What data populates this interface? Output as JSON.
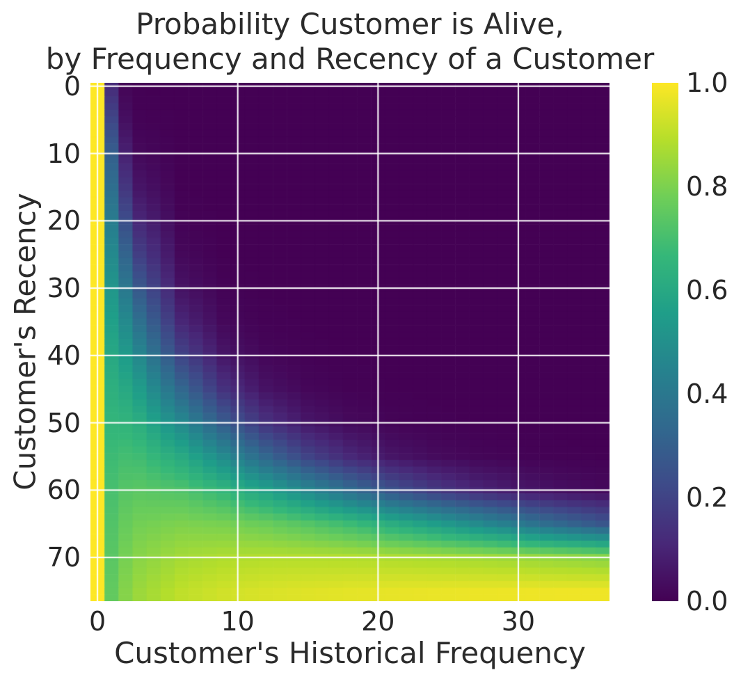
{
  "title": {
    "line1": "Probability Customer is Alive,",
    "line2": "by Frequency and Recency of a Customer"
  },
  "chart_data": {
    "type": "heatmap",
    "title": "Probability Customer is Alive, by Frequency and Recency of a Customer",
    "xlabel": "Customer's Historical Frequency",
    "ylabel": "Customer's Recency",
    "x_ticks": [
      0,
      10,
      20,
      30
    ],
    "y_ticks": [
      0,
      10,
      20,
      30,
      40,
      50,
      60,
      70
    ],
    "x_range": [
      -0.5,
      36.5
    ],
    "y_range": [
      -0.5,
      76.5
    ],
    "y_axis_inverted_top_is_zero": true,
    "grid": true,
    "grid_color": "#ffffff",
    "colormap": "viridis",
    "colormap_stops": [
      "#440154",
      "#482878",
      "#3e4a89",
      "#31688e",
      "#26828e",
      "#1f9e89",
      "#35b779",
      "#6ece58",
      "#b5de2b",
      "#fde725"
    ],
    "vmin": 0.0,
    "vmax": 1.0,
    "frequency_values": [
      0,
      1,
      2,
      3,
      6,
      9,
      12,
      15,
      18,
      21,
      24,
      27,
      30,
      33,
      36
    ],
    "recency_values": [
      0,
      5,
      10,
      15,
      20,
      25,
      30,
      35,
      40,
      45,
      50,
      55,
      60,
      65,
      70,
      75
    ],
    "values": [
      [
        1,
        0.12,
        0.01,
        0.001,
        0,
        0,
        0,
        0,
        0,
        0,
        0,
        0,
        0,
        0,
        0
      ],
      [
        1,
        0.21,
        0.04,
        0.006,
        0,
        0,
        0,
        0,
        0,
        0,
        0,
        0,
        0,
        0,
        0
      ],
      [
        1,
        0.3,
        0.09,
        0.022,
        0,
        0,
        0,
        0,
        0,
        0,
        0,
        0,
        0,
        0,
        0
      ],
      [
        1,
        0.36,
        0.156,
        0.055,
        0.001,
        0,
        0,
        0,
        0,
        0,
        0,
        0,
        0,
        0,
        0
      ],
      [
        1,
        0.42,
        0.236,
        0.109,
        0.006,
        0,
        0,
        0,
        0,
        0,
        0,
        0,
        0,
        0,
        0
      ],
      [
        1,
        0.473,
        0.32,
        0.183,
        0.019,
        0.001,
        0,
        0,
        0,
        0,
        0,
        0,
        0,
        0,
        0
      ],
      [
        1,
        0.522,
        0.4,
        0.272,
        0.048,
        0.006,
        0.001,
        0,
        0,
        0,
        0,
        0,
        0,
        0,
        0
      ],
      [
        1,
        0.563,
        0.475,
        0.367,
        0.106,
        0.02,
        0.003,
        0.001,
        0,
        0,
        0,
        0,
        0,
        0,
        0
      ],
      [
        1,
        0.6,
        0.542,
        0.461,
        0.2,
        0.058,
        0.014,
        0.003,
        0.001,
        0,
        0,
        0,
        0,
        0,
        0
      ],
      [
        1,
        0.631,
        0.6,
        0.547,
        0.328,
        0.142,
        0.049,
        0.015,
        0.004,
        0.001,
        0,
        0,
        0,
        0,
        0
      ],
      [
        1,
        0.658,
        0.65,
        0.622,
        0.471,
        0.287,
        0.143,
        0.062,
        0.024,
        0.009,
        0.003,
        0.001,
        0,
        0,
        0
      ],
      [
        1,
        0.682,
        0.694,
        0.687,
        0.606,
        0.475,
        0.328,
        0.2,
        0.11,
        0.057,
        0.028,
        0.013,
        0.006,
        0.003,
        0.001
      ],
      [
        1,
        0.704,
        0.731,
        0.74,
        0.718,
        0.656,
        0.567,
        0.461,
        0.35,
        0.25,
        0.167,
        0.107,
        0.066,
        0.04,
        0.024
      ],
      [
        1,
        0.723,
        0.763,
        0.784,
        0.802,
        0.792,
        0.766,
        0.728,
        0.679,
        0.619,
        0.552,
        0.479,
        0.405,
        0.332,
        0.265
      ],
      [
        1,
        0.739,
        0.79,
        0.82,
        0.862,
        0.879,
        0.885,
        0.885,
        0.883,
        0.877,
        0.869,
        0.86,
        0.848,
        0.834,
        0.818
      ],
      [
        1,
        0.755,
        0.813,
        0.849,
        0.904,
        0.93,
        0.944,
        0.954,
        0.961,
        0.966,
        0.97,
        0.973,
        0.976,
        0.978,
        0.979
      ]
    ],
    "legend_position": "right-colorbar"
  },
  "colorbar": {
    "tick_values": [
      1.0,
      0.8,
      0.6,
      0.4,
      0.2,
      0.0
    ],
    "tick_labels": [
      "1.0",
      "0.8",
      "0.6",
      "0.4",
      "0.2",
      "0.0"
    ]
  }
}
